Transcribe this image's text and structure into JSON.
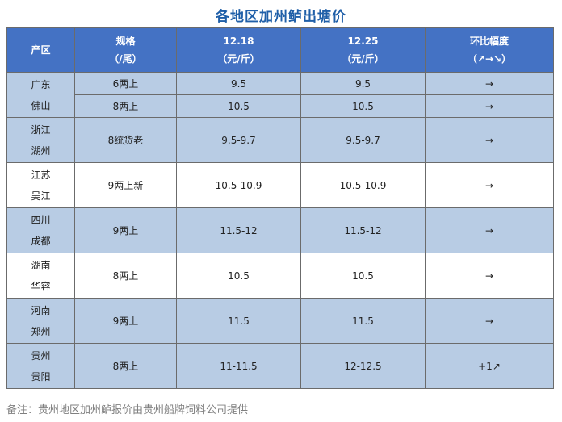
{
  "title": "各地区加州鲈出塘价",
  "header": {
    "region": "产区",
    "spec": "规格",
    "spec_unit": "（/尾）",
    "date1": "12.18",
    "date1_unit": "（元/斤）",
    "date2": "12.25",
    "date2_unit": "（元/斤）",
    "change": "环比幅度",
    "change_unit": "（↗→↘）"
  },
  "rows": [
    {
      "region_a": "广东",
      "region_b": "佛山",
      "spec": "6两上",
      "p1": "9.5",
      "p2": "9.5",
      "change": "→"
    },
    {
      "spec": "8两上",
      "p1": "10.5",
      "p2": "10.5",
      "change": "→"
    },
    {
      "region_a": "浙江",
      "region_b": "湖州",
      "spec": "8统货老",
      "p1": "9.5-9.7",
      "p2": "9.5-9.7",
      "change": "→"
    },
    {
      "region_a": "江苏",
      "region_b": "吴江",
      "spec": "9两上新",
      "p1": "10.5-10.9",
      "p2": "10.5-10.9",
      "change": "→"
    },
    {
      "region_a": "四川",
      "region_b": "成都",
      "spec": "9两上",
      "p1": "11.5-12",
      "p2": "11.5-12",
      "change": "→"
    },
    {
      "region_a": "湖南",
      "region_b": "华容",
      "spec": "8两上",
      "p1": "10.5",
      "p2": "10.5",
      "change": "→"
    },
    {
      "region_a": "河南",
      "region_b": "郑州",
      "spec": "9两上",
      "p1": "11.5",
      "p2": "11.5",
      "change": "→"
    },
    {
      "region_a": "贵州",
      "region_b": "贵阳",
      "spec": "8两上",
      "p1": "11-11.5",
      "p2": "12-12.5",
      "change": "+1↗"
    }
  ],
  "colors": {
    "header_bg": "#4472c4",
    "title": "#1f5fa8",
    "stripe": "#b8cce4",
    "up": "#e0001a"
  },
  "note": "备注：贵州地区加州鲈报价由贵州船牌饲料公司提供"
}
